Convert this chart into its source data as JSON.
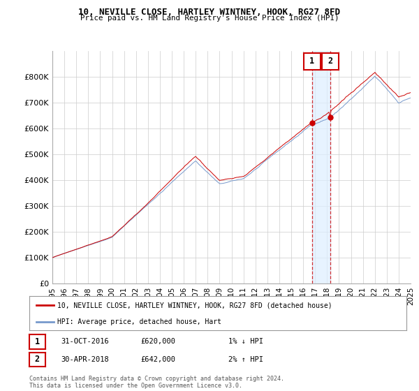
{
  "title": "10, NEVILLE CLOSE, HARTLEY WINTNEY, HOOK, RG27 8FD",
  "subtitle": "Price paid vs. HM Land Registry's House Price Index (HPI)",
  "ylim": [
    0,
    900000
  ],
  "yticks": [
    0,
    100000,
    200000,
    300000,
    400000,
    500000,
    600000,
    700000,
    800000
  ],
  "ytick_labels": [
    "£0",
    "£100K",
    "£200K",
    "£300K",
    "£400K",
    "£500K",
    "£600K",
    "£700K",
    "£800K"
  ],
  "line1_color": "#cc0000",
  "line2_color": "#7799cc",
  "idx1": 261,
  "idx2": 279,
  "val1": 620000,
  "val2": 642000,
  "n_months": 361,
  "legend1": "10, NEVILLE CLOSE, HARTLEY WINTNEY, HOOK, RG27 8FD (detached house)",
  "legend2": "HPI: Average price, detached house, Hart",
  "ann1_date": "31-OCT-2016",
  "ann1_price": "£620,000",
  "ann1_hpi": "1% ↓ HPI",
  "ann2_date": "30-APR-2018",
  "ann2_price": "£642,000",
  "ann2_hpi": "2% ↑ HPI",
  "footer": "Contains HM Land Registry data © Crown copyright and database right 2024.\nThis data is licensed under the Open Government Licence v3.0.",
  "bg": "#ffffff",
  "grid_color": "#cccccc",
  "shade_color": "#ddeeff"
}
